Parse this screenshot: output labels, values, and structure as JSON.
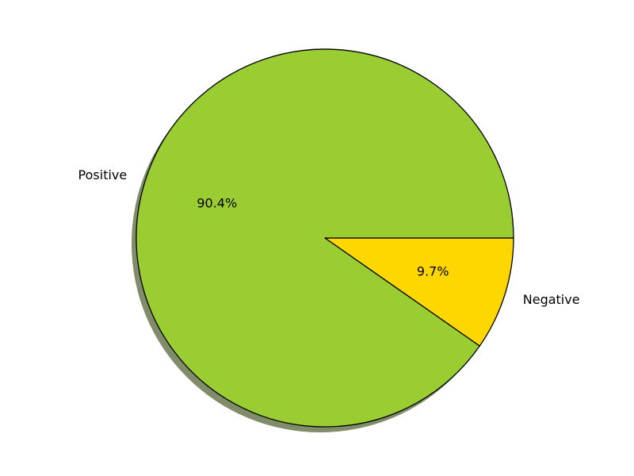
{
  "chart_data": {
    "type": "pie",
    "title": "",
    "shadow": true,
    "start_angle_deg": 0,
    "direction": "clockwise",
    "slices": [
      {
        "label": "Negative",
        "value": 9.7,
        "pct_label": "9.7%",
        "color": "#ffd700"
      },
      {
        "label": "Positive",
        "value": 90.4,
        "pct_label": "90.4%",
        "color": "#9acd32"
      }
    ],
    "edge_color": "#000000",
    "shadow_color": "#818c6a"
  }
}
